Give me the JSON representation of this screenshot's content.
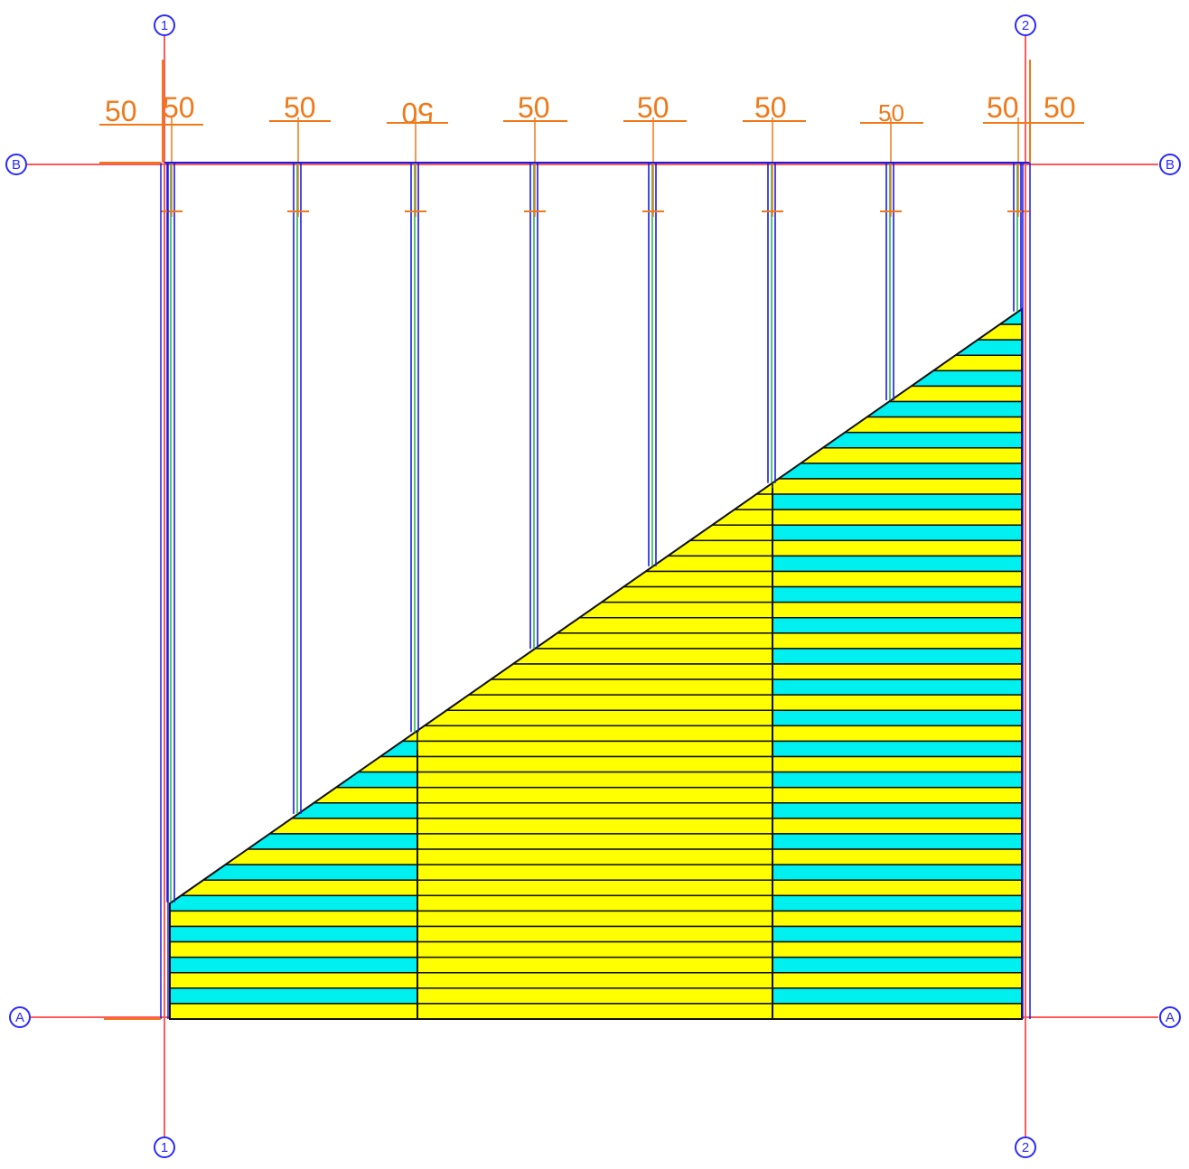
{
  "colors": {
    "grid_line": "#ff5a5a",
    "bubble": "#2a2aff",
    "dimension": "#f07818",
    "beam_blue": "#1a1ae6",
    "beam_green": "#2ab84a",
    "fill_yellow": "#ffff00",
    "fill_cyan": "#00f0f0",
    "outline": "#111111",
    "background": "#ffffff"
  },
  "grid": {
    "col1_label": "1",
    "col2_label": "2",
    "rowA_label": "A",
    "rowB_label": "B"
  },
  "dimensions": [
    "50",
    "50",
    "50",
    "50",
    "50",
    "50",
    "50",
    "50",
    "50",
    "50"
  ],
  "hatch": {
    "stripe_count": 28,
    "zone_split_1": "cyan-left-segment",
    "zone_split_2": "cyan-right-segment"
  }
}
